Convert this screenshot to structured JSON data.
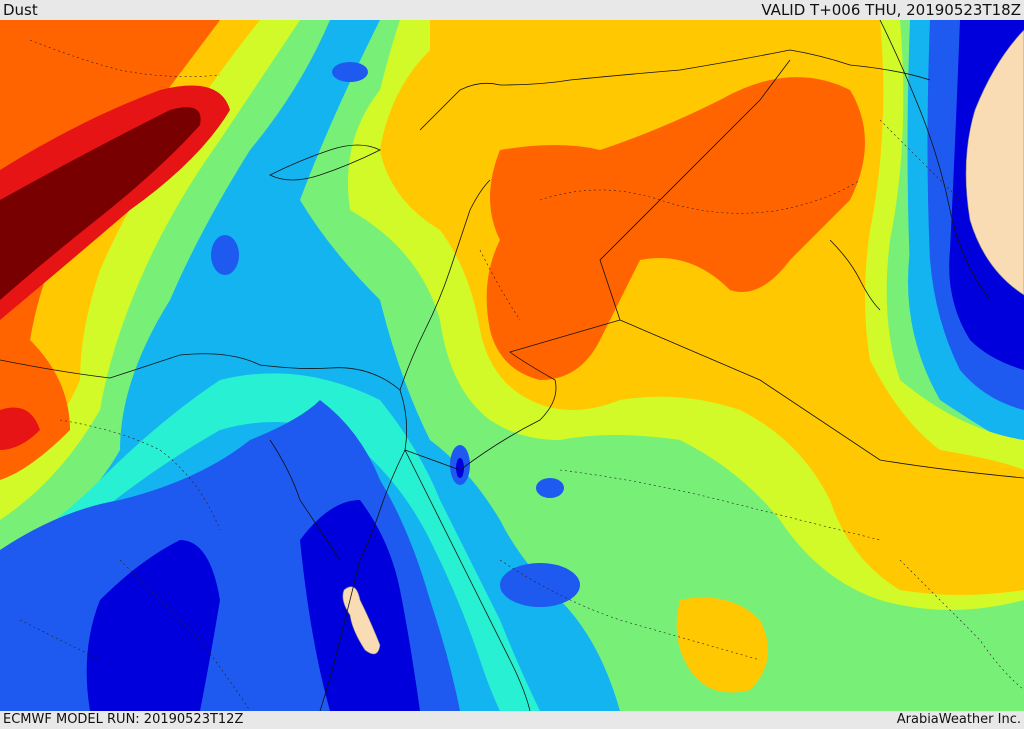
{
  "header": {
    "field_name": "Dust",
    "valid_time": "VALID T+006 THU, 20190523T18Z"
  },
  "footer": {
    "model_run": "ECMWF MODEL RUN: 20190523T12Z",
    "credit": "ArabiaWeather Inc."
  },
  "palette": {
    "lowest": "#0000dc",
    "low": "#1e5af0",
    "low_mid": "#14b4f0",
    "mid_low": "#28f0d2",
    "mid": "#78f078",
    "mid_high": "#d2fa28",
    "high": "#ffc800",
    "higher": "#ff6400",
    "very_high": "#e61414",
    "extreme": "#780000",
    "blank": "#fadcb4"
  }
}
